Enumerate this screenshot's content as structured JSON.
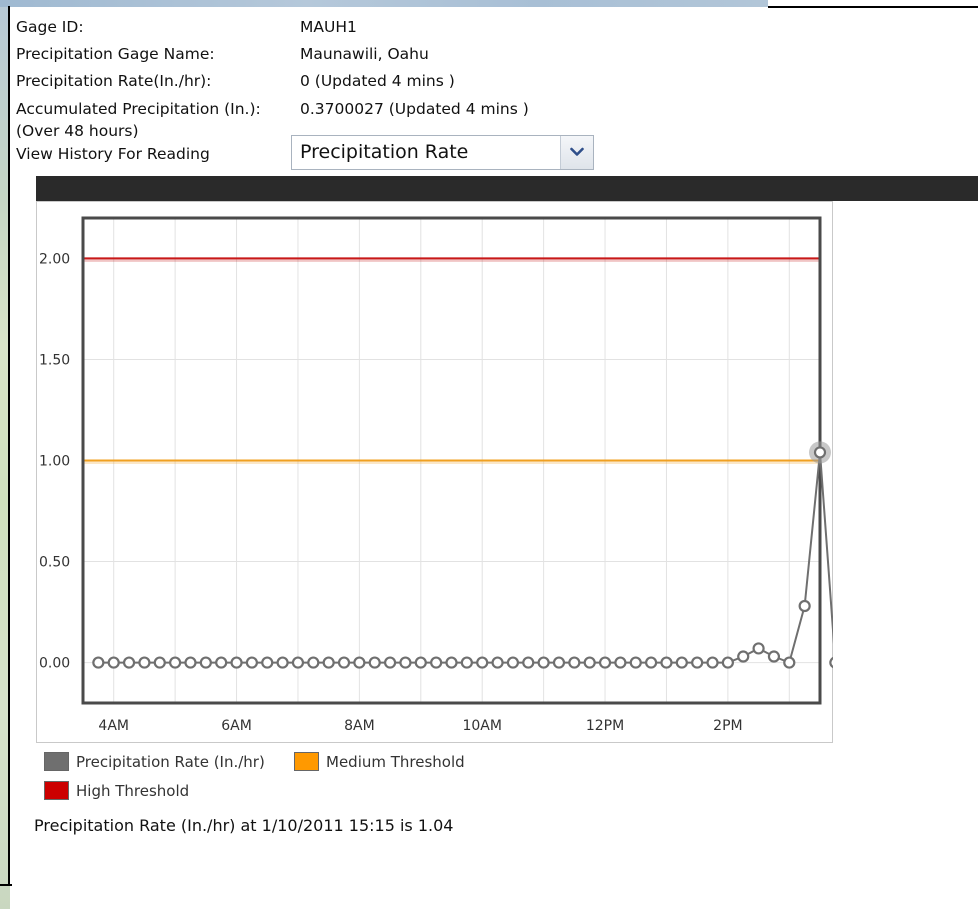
{
  "info": {
    "gage_id_label": "Gage ID:",
    "gage_id_value": "MAUH1",
    "gage_name_label": "Precipitation Gage Name:",
    "gage_name_value": "Maunawili, Oahu",
    "rate_label": "Precipitation Rate(In./hr):",
    "rate_value": "0 (Updated 4 mins )",
    "accum_label": "Accumulated Precipitation (In.):",
    "accum_value": "0.3700027 (Updated 4 mins )",
    "accum_note": "(Over 48 hours)",
    "history_label": "View History For Reading"
  },
  "history_select": {
    "selected": "Precipitation Rate",
    "icon": "chevron-down-icon"
  },
  "chart_data": {
    "type": "line",
    "x_tick_labels": [
      "4AM",
      "6AM",
      "8AM",
      "10AM",
      "12PM",
      "2PM"
    ],
    "y_tick_labels": [
      "0.00",
      "0.50",
      "1.00",
      "1.50",
      "2.00"
    ],
    "ylim": [
      -0.2,
      2.2
    ],
    "x_start_hour": 3.5,
    "x_end_hour": 15.5,
    "step_hours": 0.25,
    "grid": true,
    "series": [
      {
        "name": "Precipitation Rate (In./hr)",
        "color": "#6f6f6f",
        "values": [
          0,
          0,
          0,
          0,
          0,
          0,
          0,
          0,
          0,
          0,
          0,
          0,
          0,
          0,
          0,
          0,
          0,
          0,
          0,
          0,
          0,
          0,
          0,
          0,
          0,
          0,
          0,
          0,
          0,
          0,
          0,
          0,
          0,
          0,
          0,
          0,
          0,
          0,
          0,
          0,
          0,
          0,
          0.03,
          0.07,
          0.03,
          0,
          0.28,
          1.04,
          0
        ]
      }
    ],
    "thresholds": [
      {
        "name": "Medium Threshold",
        "value": 1.0,
        "color": "#f0a020"
      },
      {
        "name": "High Threshold",
        "value": 2.0,
        "color": "#c81818"
      }
    ],
    "highlighted_point_index": 47,
    "legend": [
      {
        "label": "Precipitation Rate (In./hr)",
        "color": "#6f6f6f"
      },
      {
        "label": "Medium Threshold",
        "color": "#ff9900"
      },
      {
        "label": "High Threshold",
        "color": "#cc0000"
      }
    ],
    "legend_placement": "bottom-left"
  },
  "status_text": "Precipitation Rate (In./hr) at 1/10/2011 15:15 is 1.04"
}
